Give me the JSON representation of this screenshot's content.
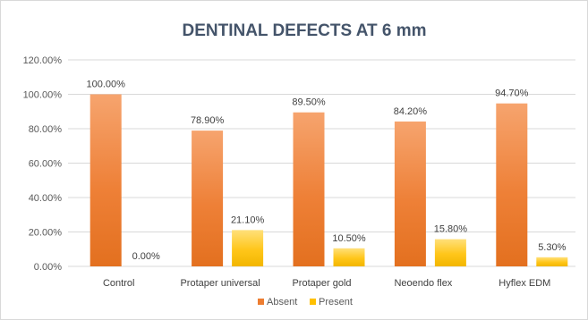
{
  "chart_data": {
    "type": "bar",
    "title": "DENTINAL DEFECTS AT 6 mm",
    "categories": [
      "Control",
      "Protaper universal",
      "Protaper gold",
      "Neoendo flex",
      "Hyflex EDM"
    ],
    "series": [
      {
        "name": "Absent",
        "values": [
          100.0,
          78.9,
          89.5,
          84.2,
          94.7
        ],
        "labels": [
          "100.00%",
          "78.90%",
          "89.50%",
          "84.20%",
          "94.70%"
        ],
        "color": "#ed7d31"
      },
      {
        "name": "Present",
        "values": [
          0.0,
          21.1,
          10.5,
          15.8,
          5.3
        ],
        "labels": [
          "0.00%",
          "21.10%",
          "10.50%",
          "15.80%",
          "5.30%"
        ],
        "color": "#ffc000"
      }
    ],
    "yticks": [
      0,
      20,
      40,
      60,
      80,
      100,
      120
    ],
    "ytick_labels": [
      "0.00%",
      "20.00%",
      "40.00%",
      "60.00%",
      "80.00%",
      "100.00%",
      "120.00%"
    ],
    "ylim": [
      0,
      120
    ],
    "grid": true,
    "legend_position": "bottom"
  }
}
